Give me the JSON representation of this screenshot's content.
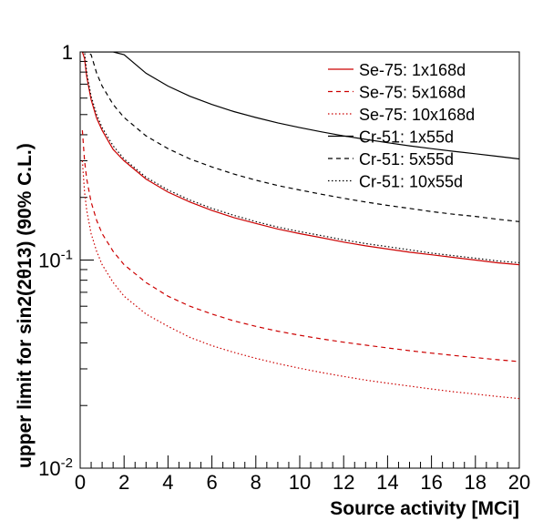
{
  "chart_data": {
    "type": "line",
    "xlabel": "Source activity [MCi]",
    "ylabel": "upper limit for sin2(2θ13) (90% C.L.)",
    "xlim": [
      0,
      20
    ],
    "ylim": [
      0.01,
      1
    ],
    "yscale": "log",
    "x_ticks": [
      "0",
      "2",
      "4",
      "6",
      "8",
      "10",
      "12",
      "14",
      "16",
      "18",
      "20"
    ],
    "y_tick_labels": [
      {
        "value": 1,
        "base": "1",
        "exp": ""
      },
      {
        "value": 0.1,
        "base": "10",
        "exp": "-1"
      },
      {
        "value": 0.01,
        "base": "10",
        "exp": "-2"
      }
    ],
    "grid": false,
    "legend_position": "top-right",
    "x": [
      0.1,
      0.2,
      0.3,
      0.5,
      0.75,
      1,
      1.5,
      2,
      3,
      4,
      5,
      6,
      7,
      8,
      9,
      10,
      11,
      12,
      13,
      14,
      15,
      16,
      17,
      18,
      19,
      20
    ],
    "series": [
      {
        "name": "Se-75: 1x168d",
        "color": "#cc0000",
        "dash": "solid",
        "values": [
          1.0,
          0.93,
          0.76,
          0.59,
          0.48,
          0.42,
          0.34,
          0.3,
          0.245,
          0.212,
          0.19,
          0.173,
          0.16,
          0.15,
          0.141,
          0.134,
          0.128,
          0.122,
          0.117,
          0.113,
          0.109,
          0.106,
          0.103,
          0.1,
          0.097,
          0.095
        ]
      },
      {
        "name": "Se-75: 5x168d",
        "color": "#cc0000",
        "dash": "dashed",
        "values": [
          0.42,
          0.3,
          0.245,
          0.19,
          0.155,
          0.134,
          0.11,
          0.095,
          0.078,
          0.067,
          0.06,
          0.055,
          0.051,
          0.048,
          0.0455,
          0.0435,
          0.0418,
          0.0403,
          0.039,
          0.0378,
          0.0367,
          0.0357,
          0.0348,
          0.034,
          0.0332,
          0.0325
        ]
      },
      {
        "name": "Se-75: 10x168d",
        "color": "#cc0000",
        "dash": "dotted",
        "values": [
          0.3,
          0.212,
          0.173,
          0.134,
          0.11,
          0.095,
          0.078,
          0.067,
          0.055,
          0.048,
          0.0425,
          0.0388,
          0.036,
          0.0337,
          0.0318,
          0.0302,
          0.0288,
          0.0276,
          0.0265,
          0.0256,
          0.0248,
          0.024,
          0.0233,
          0.0227,
          0.0221,
          0.0216
        ]
      },
      {
        "name": "Cr-51: 1x55d",
        "color": "#000000",
        "dash": "solid",
        "values": [
          1.0,
          1.0,
          1.0,
          1.0,
          1.0,
          1.0,
          1.0,
          0.97,
          0.79,
          0.685,
          0.612,
          0.559,
          0.517,
          0.484,
          0.456,
          0.433,
          0.413,
          0.395,
          0.38,
          0.366,
          0.354,
          0.343,
          0.333,
          0.324,
          0.315,
          0.306
        ]
      },
      {
        "name": "Cr-51: 5x55d",
        "color": "#000000",
        "dash": "dashed",
        "values": [
          1.0,
          1.0,
          1.0,
          0.97,
          0.79,
          0.685,
          0.559,
          0.484,
          0.395,
          0.343,
          0.306,
          0.28,
          0.259,
          0.242,
          0.228,
          0.217,
          0.207,
          0.198,
          0.19,
          0.183,
          0.177,
          0.171,
          0.166,
          0.162,
          0.157,
          0.153
        ]
      },
      {
        "name": "Cr-51: 10x55d",
        "color": "#000000",
        "dash": "dotted",
        "values": [
          1.0,
          1.0,
          0.79,
          0.612,
          0.5,
          0.433,
          0.354,
          0.306,
          0.25,
          0.217,
          0.194,
          0.177,
          0.164,
          0.153,
          0.144,
          0.137,
          0.131,
          0.125,
          0.12,
          0.116,
          0.112,
          0.108,
          0.105,
          0.102,
          0.099,
          0.097
        ]
      }
    ]
  }
}
